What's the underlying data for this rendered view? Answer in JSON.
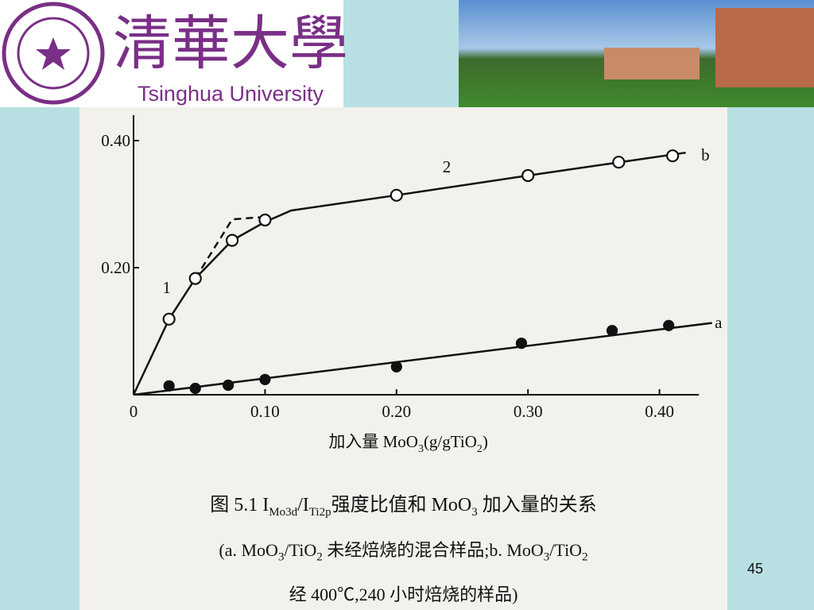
{
  "header": {
    "logo_cn": "清華大學",
    "logo_en": "Tsinghua University"
  },
  "chart_data": {
    "type": "scatter",
    "xlabel": [
      "加入量 MoO",
      "3",
      "(g/gTiO",
      "2",
      ")"
    ],
    "xlim": [
      0,
      0.43
    ],
    "ylim": [
      0,
      0.44
    ],
    "xticks": [
      {
        "value": 0,
        "label": "0"
      },
      {
        "value": 0.1,
        "label": "0.10"
      },
      {
        "value": 0.2,
        "label": "0.20"
      },
      {
        "value": 0.3,
        "label": "0.30"
      },
      {
        "value": 0.4,
        "label": "0.40"
      }
    ],
    "yticks": [
      {
        "value": 0.2,
        "label": "0.20"
      },
      {
        "value": 0.4,
        "label": "0.40"
      }
    ],
    "series": [
      {
        "name": "b",
        "marker": "open",
        "color": "#111111",
        "x": [
          0.027,
          0.047,
          0.075,
          0.1,
          0.2,
          0.3,
          0.369,
          0.41
        ],
        "values": [
          0.119,
          0.183,
          0.243,
          0.275,
          0.314,
          0.345,
          0.366,
          0.376
        ]
      },
      {
        "name": "a",
        "marker": "filled",
        "color": "#111111",
        "x": [
          0.027,
          0.047,
          0.072,
          0.1,
          0.2,
          0.295,
          0.364,
          0.407
        ],
        "values": [
          0.014,
          0.01,
          0.015,
          0.024,
          0.044,
          0.081,
          0.101,
          0.109
        ]
      }
    ],
    "curves": [
      {
        "style": "solid",
        "x": [
          0,
          0.027,
          0.047,
          0.075,
          0.1,
          0.12,
          0.2,
          0.3,
          0.42
        ],
        "values": [
          0,
          0.119,
          0.183,
          0.243,
          0.272,
          0.29,
          0.314,
          0.345,
          0.381
        ]
      },
      {
        "style": "solid",
        "x": [
          0,
          0.44
        ],
        "values": [
          0,
          0.113
        ]
      },
      {
        "style": "dashed",
        "x": [
          0.047,
          0.075,
          0.1
        ],
        "values": [
          0.183,
          0.276,
          0.28
        ]
      }
    ],
    "annotations": [
      "1",
      "2"
    ]
  },
  "caption": {
    "line1": [
      "图 5.1  I",
      "Mo3d",
      "/I",
      "Ti2p",
      "强度比值和 MoO",
      "3",
      " 加入量的关系"
    ],
    "line2": [
      "(a. MoO",
      "3",
      "/TiO",
      "2",
      " 未经焙烧的混合样品;b. MoO",
      "3",
      "/TiO",
      "2",
      ""
    ],
    "line3": [
      "经 400℃,240 小时焙烧的样品)"
    ]
  },
  "page_number": "45"
}
